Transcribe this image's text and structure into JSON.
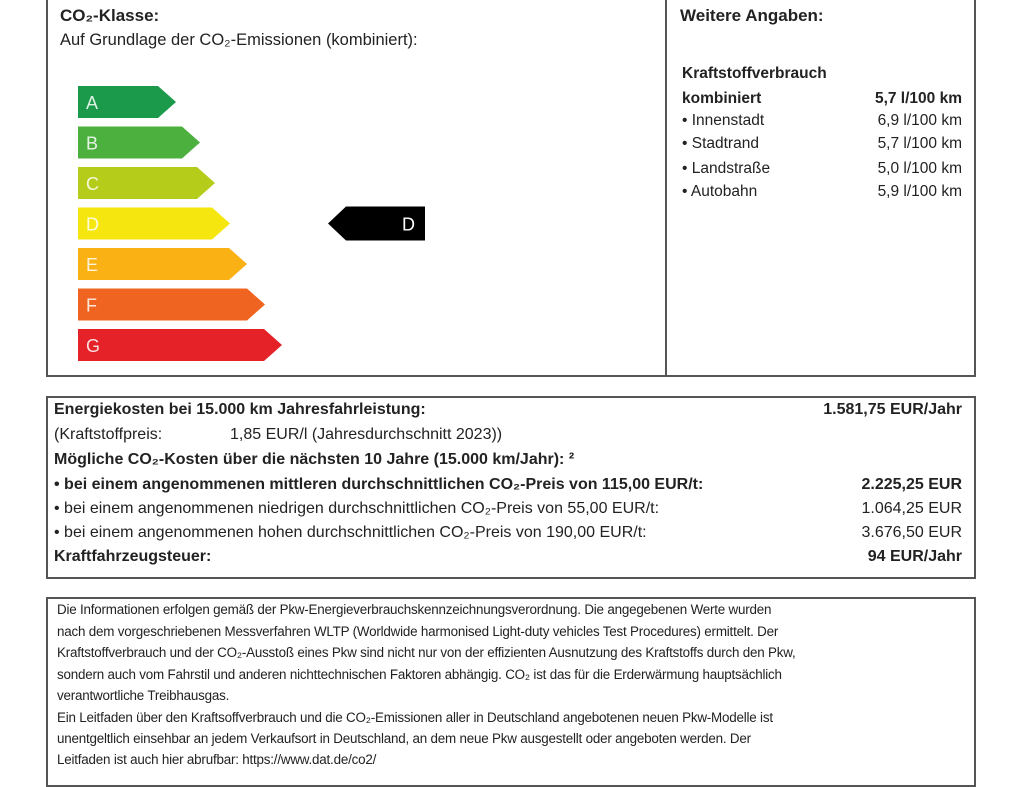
{
  "co2": {
    "title": "CO₂-Klasse:",
    "subtitle": "Auf Grundlage der CO₂-Emissionen (kombiniert):",
    "classes": [
      {
        "label": "A",
        "color": "#1a9a4a"
      },
      {
        "label": "B",
        "color": "#4cb03e"
      },
      {
        "label": "C",
        "color": "#b5cc1a"
      },
      {
        "label": "D",
        "color": "#f5e60f"
      },
      {
        "label": "E",
        "color": "#f9b113"
      },
      {
        "label": "F",
        "color": "#ef6420"
      },
      {
        "label": "G",
        "color": "#e52228"
      }
    ],
    "current": "D"
  },
  "weitere": {
    "title": "Weitere Angaben:",
    "heading": "Kraftstoffverbrauch",
    "rows": [
      {
        "label": "kombiniert",
        "value": "5,7 l/100 km"
      },
      {
        "label": "• Innenstadt",
        "value": "6,9 l/100 km"
      },
      {
        "label": "• Stadtrand",
        "value": "5,7 l/100 km"
      },
      {
        "label": "• Landstraße",
        "value": "5,0 l/100 km"
      },
      {
        "label": "• Autobahn",
        "value": "5,9 l/100 km"
      }
    ]
  },
  "kosten": {
    "energie_label": "Energiekosten bei 15.000 km Jahresfahrleistung:",
    "energie_value": "1.581,75 EUR/Jahr",
    "preis_label": "(Kraftstoffpreis:",
    "preis_value": "1,85 EUR/l (Jahresdurchschnitt 2023))",
    "co2_heading": "Mögliche CO₂-Kosten über die nächsten 10 Jahre (15.000 km/Jahr): ²",
    "rows": [
      {
        "label": "• bei einem angenommenen mittleren durchschnittlichen CO₂-Preis von 115,00 EUR/t:",
        "value": "2.225,25 EUR"
      },
      {
        "label": "• bei einem angenommenen niedrigen durchschnittlichen CO₂-Preis von 55,00 EUR/t:",
        "value": "1.064,25 EUR"
      },
      {
        "label": "• bei einem angenommenen hohen durchschnittlichen CO₂-Preis von 190,00 EUR/t:",
        "value": "3.676,50 EUR"
      }
    ],
    "steuer_label": "Kraftfahrzeugsteuer:",
    "steuer_value": "94 EUR/Jahr"
  },
  "hinweis": {
    "lines": [
      "Die Informationen erfolgen gemäß der Pkw-Energieverbrauchskennzeichnungsverordnung. Die angegebenen Werte wurden",
      "nach dem vorgeschriebenen Messverfahren WLTP (Worldwide harmonised Light-duty vehicles Test Procedures) ermittelt. Der",
      "Kraftstoffverbrauch und der CO₂-Ausstoß eines Pkw sind nicht nur von der effizienten Ausnutzung des Kraftstoffs durch den Pkw,",
      "sondern auch vom Fahrstil und anderen nichttechnischen Faktoren abhängig. CO₂ ist das für die Erderwärmung hauptsächlich",
      "verantwortliche Treibhausgas.",
      "Ein Leitfaden über den Kraftsoffverbrauch und die CO₂-Emissionen aller in Deutschland angebotenen neuen Pkw-Modelle ist",
      "unentgeltlich einsehbar an jedem Verkaufsort in Deutschland, an dem neue Pkw ausgestellt oder angeboten werden. Der",
      "Leitfaden ist auch hier abrufbar: https://www.dat.de/co2/"
    ]
  }
}
